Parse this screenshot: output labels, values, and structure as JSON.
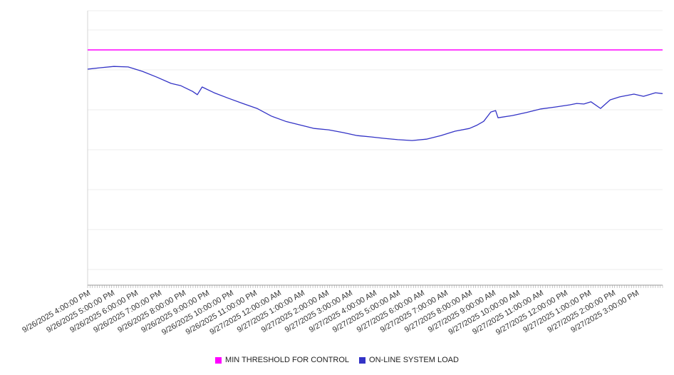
{
  "chart_data": {
    "type": "line",
    "title": "",
    "xlim": [
      0,
      24.1
    ],
    "ylim": [
      0,
      100
    ],
    "x_tick_labels": [
      "9/26/2025 4:00:00 PM",
      "9/26/2025 5:00:00 PM",
      "9/26/2025 6:00:00 PM",
      "9/26/2025 7:00:00 PM",
      "9/26/2025 8:00:00 PM",
      "9/26/2025 9:00:00 PM",
      "9/26/2025 10:00:00 PM",
      "9/26/2025 11:00:00 PM",
      "9/27/2025 12:00:00 AM",
      "9/27/2025 1:00:00 AM",
      "9/27/2025 2:00:00 AM",
      "9/27/2025 3:00:00 AM",
      "9/27/2025 4:00:00 AM",
      "9/27/2025 5:00:00 AM",
      "9/27/2025 6:00:00 AM",
      "9/27/2025 7:00:00 AM",
      "9/27/2025 8:00:00 AM",
      "9/27/2025 9:00:00 AM",
      "9/27/2025 10:00:00 AM",
      "9/27/2025 11:00:00 AM",
      "9/27/2025 12:00:00 PM",
      "9/27/2025 1:00:00 PM",
      "9/27/2025 2:00:00 PM",
      "9/27/2025 3:00:00 PM"
    ],
    "y_tick_labels": [],
    "grid": true,
    "legend_position": "bottom-center",
    "series": [
      {
        "name": "MIN THRESHOLD FOR CONTROL",
        "color": "#ff00ff",
        "style": "horizontal-threshold",
        "value": 85.7
      },
      {
        "name": "ON-LINE SYSTEM LOAD",
        "color": "#3333c6",
        "x_unit": "hours from 9/26/2025 4:00:00 PM",
        "points": [
          [
            0.0,
            78.7
          ],
          [
            0.5,
            79.2
          ],
          [
            1.1,
            79.7
          ],
          [
            1.7,
            79.5
          ],
          [
            2.3,
            77.9
          ],
          [
            2.9,
            75.8
          ],
          [
            3.5,
            73.5
          ],
          [
            3.9,
            72.7
          ],
          [
            4.4,
            70.6
          ],
          [
            4.6,
            69.4
          ],
          [
            4.8,
            72.2
          ],
          [
            5.3,
            70.1
          ],
          [
            5.9,
            68.1
          ],
          [
            6.5,
            66.2
          ],
          [
            7.1,
            64.4
          ],
          [
            7.7,
            61.6
          ],
          [
            8.3,
            59.7
          ],
          [
            8.9,
            58.4
          ],
          [
            9.5,
            57.1
          ],
          [
            10.1,
            56.6
          ],
          [
            10.7,
            55.6
          ],
          [
            11.3,
            54.5
          ],
          [
            11.9,
            54.0
          ],
          [
            12.4,
            53.5
          ],
          [
            13.0,
            53.0
          ],
          [
            13.6,
            52.7
          ],
          [
            14.2,
            53.2
          ],
          [
            14.8,
            54.5
          ],
          [
            15.4,
            56.1
          ],
          [
            16.0,
            57.1
          ],
          [
            16.3,
            58.2
          ],
          [
            16.6,
            59.7
          ],
          [
            16.9,
            63.1
          ],
          [
            17.1,
            63.6
          ],
          [
            17.2,
            61.0
          ],
          [
            17.8,
            61.8
          ],
          [
            18.4,
            62.9
          ],
          [
            19.0,
            64.2
          ],
          [
            19.6,
            64.9
          ],
          [
            20.2,
            65.7
          ],
          [
            20.5,
            66.2
          ],
          [
            20.8,
            66.0
          ],
          [
            21.1,
            66.8
          ],
          [
            21.5,
            64.4
          ],
          [
            21.9,
            67.5
          ],
          [
            22.3,
            68.6
          ],
          [
            22.9,
            69.6
          ],
          [
            23.3,
            68.8
          ],
          [
            23.8,
            70.1
          ],
          [
            24.1,
            69.8
          ]
        ]
      }
    ]
  },
  "legend": {
    "items": [
      {
        "label": "MIN THRESHOLD FOR CONTROL",
        "color": "#ff00ff"
      },
      {
        "label": "ON-LINE SYSTEM LOAD",
        "color": "#3333c6"
      }
    ]
  }
}
